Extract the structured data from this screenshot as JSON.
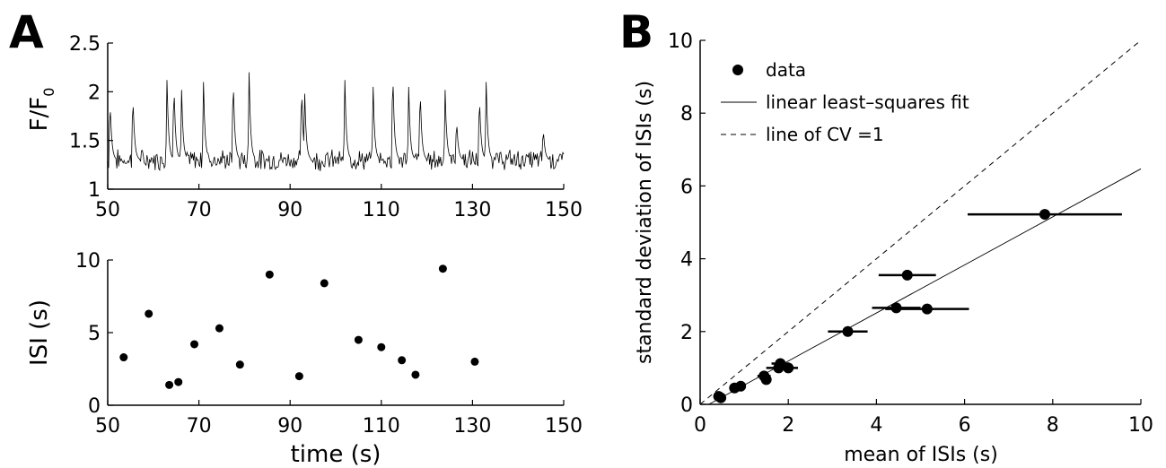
{
  "chart_data": [
    {
      "panel_label": "A",
      "type": "line",
      "ylabel": "F/F",
      "ylabel_subscript": "0",
      "xlim": [
        50,
        150
      ],
      "ylim": [
        1,
        2.5
      ],
      "xticks": [
        "50",
        "70",
        "90",
        "110",
        "130",
        "150"
      ],
      "yticks": [
        "1",
        "1.5",
        "2",
        "2.5"
      ],
      "baseline": 1.3,
      "spikes": [
        {
          "t": 50.5,
          "peak": 1.95
        },
        {
          "t": 55.5,
          "peak": 2.02
        },
        {
          "t": 63.0,
          "peak": 2.12
        },
        {
          "t": 64.5,
          "peak": 2.15
        },
        {
          "t": 66.2,
          "peak": 2.02
        },
        {
          "t": 71.0,
          "peak": 2.1
        },
        {
          "t": 77.5,
          "peak": 2.22
        },
        {
          "t": 81.0,
          "peak": 2.2
        },
        {
          "t": 92.5,
          "peak": 2.12
        },
        {
          "t": 93.2,
          "peak": 1.98
        },
        {
          "t": 102.0,
          "peak": 2.12
        },
        {
          "t": 108.2,
          "peak": 2.05
        },
        {
          "t": 112.5,
          "peak": 2.3
        },
        {
          "t": 116.0,
          "peak": 2.05
        },
        {
          "t": 118.5,
          "peak": 2.1
        },
        {
          "t": 124.0,
          "peak": 2.02
        },
        {
          "t": 126.5,
          "peak": 1.75
        },
        {
          "t": 131.5,
          "peak": 2.02
        },
        {
          "t": 133.0,
          "peak": 2.1
        },
        {
          "t": 145.5,
          "peak": 1.65
        }
      ]
    },
    {
      "type": "scatter",
      "xlabel": "time (s)",
      "ylabel": "ISI (s)",
      "xlim": [
        50,
        150
      ],
      "ylim": [
        0,
        10
      ],
      "xticks": [
        "50",
        "70",
        "90",
        "110",
        "130",
        "150"
      ],
      "yticks": [
        "0",
        "5",
        "10"
      ],
      "points": [
        [
          53.5,
          3.3
        ],
        [
          59,
          6.3
        ],
        [
          63.5,
          1.4
        ],
        [
          65.5,
          1.6
        ],
        [
          69,
          4.2
        ],
        [
          74.5,
          5.3
        ],
        [
          79,
          2.8
        ],
        [
          85.5,
          9.0
        ],
        [
          92,
          2.0
        ],
        [
          97.5,
          8.4
        ],
        [
          105,
          4.5
        ],
        [
          110,
          4.0
        ],
        [
          114.5,
          3.1
        ],
        [
          117.5,
          2.1
        ],
        [
          123.5,
          9.4
        ],
        [
          130.5,
          3.0
        ]
      ]
    },
    {
      "panel_label": "B",
      "type": "scatter",
      "xlabel": "mean of ISIs (s)",
      "ylabel": "standard deviation of ISIs (s)",
      "xlim": [
        0,
        10
      ],
      "ylim": [
        0,
        10
      ],
      "xticks": [
        "0",
        "2",
        "4",
        "6",
        "8",
        "10"
      ],
      "yticks": [
        "0",
        "2",
        "4",
        "6",
        "8",
        "10"
      ],
      "legend": {
        "position": "top-left",
        "entries": [
          "data",
          "linear least–squares fit",
          "line of CV =1"
        ]
      },
      "points": [
        {
          "x": 0.42,
          "y": 0.22,
          "xerr": 0.08
        },
        {
          "x": 0.47,
          "y": 0.18,
          "xerr": 0.08
        },
        {
          "x": 0.78,
          "y": 0.45,
          "xerr": 0.1
        },
        {
          "x": 0.92,
          "y": 0.5,
          "xerr": 0.1
        },
        {
          "x": 1.45,
          "y": 0.78,
          "xerr": 0.15
        },
        {
          "x": 1.5,
          "y": 0.68,
          "xerr": 0.12
        },
        {
          "x": 1.78,
          "y": 1.0,
          "xerr": 0.28
        },
        {
          "x": 1.82,
          "y": 1.12,
          "xerr": 0.2
        },
        {
          "x": 2.0,
          "y": 1.0,
          "xerr": 0.22
        },
        {
          "x": 3.35,
          "y": 2.0,
          "xerr": 0.45
        },
        {
          "x": 4.45,
          "y": 2.65,
          "xerr": 0.55
        },
        {
          "x": 4.7,
          "y": 3.55,
          "xerr": 0.65
        },
        {
          "x": 5.15,
          "y": 2.62,
          "xerr": 0.95
        },
        {
          "x": 7.82,
          "y": 5.22,
          "xerr": 1.75
        }
      ],
      "fit_line": {
        "slope": 0.66,
        "intercept": -0.13
      },
      "cv1_line": {
        "slope": 1,
        "intercept": 0
      }
    }
  ]
}
